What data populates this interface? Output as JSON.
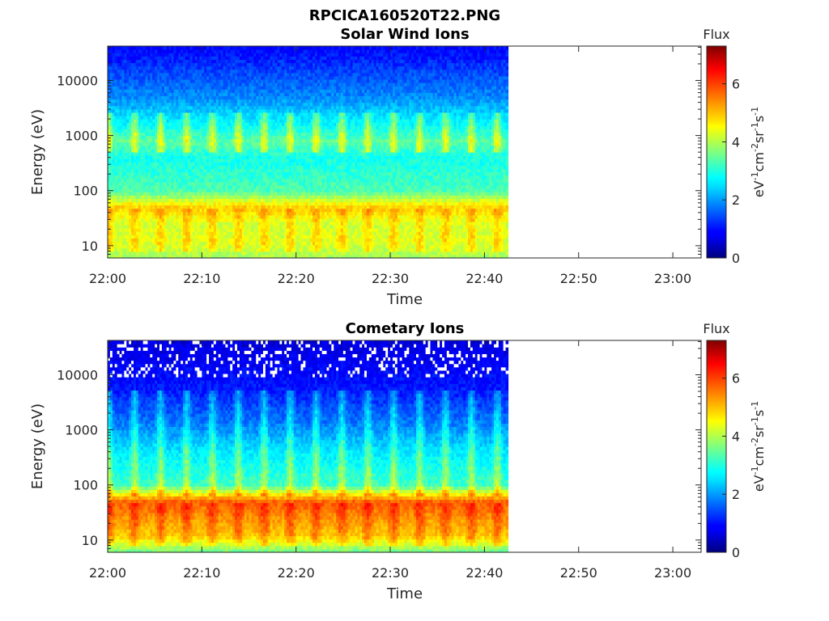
{
  "figure": {
    "title": "RPCICA160520T22.PNG"
  },
  "chart_data": [
    {
      "type": "heatmap",
      "title": "Solar Wind Ions",
      "xlabel": "Time",
      "ylabel": "Energy (eV)",
      "yscale": "log",
      "x_ticks": [
        "22:00",
        "22:10",
        "22:20",
        "22:30",
        "22:40",
        "22:50",
        "23:00"
      ],
      "xlim": [
        "22:00",
        "23:03"
      ],
      "data_end": "22:42.5",
      "y_ticks": [
        10,
        100,
        1000,
        10000
      ],
      "ylim": [
        6,
        42000
      ],
      "colorbar": {
        "title": "Flux",
        "label": "eV-1cm-2sr-1s-1",
        "ticks": [
          0,
          2,
          4,
          6
        ],
        "range": [
          0,
          7.3
        ],
        "colormap": "jet"
      },
      "spectrum": [
        {
          "energy": 6,
          "flux": 3.9
        },
        {
          "energy": 12,
          "flux": 4.3
        },
        {
          "energy": 25,
          "flux": 4.2
        },
        {
          "energy": 50,
          "flux": 4.9
        },
        {
          "energy": 100,
          "flux": 3.3
        },
        {
          "energy": 400,
          "flux": 2.9
        },
        {
          "energy": 800,
          "flux": 3.4
        },
        {
          "energy": 1500,
          "flux": 2.8
        },
        {
          "energy": 5000,
          "flux": 1.9
        },
        {
          "energy": 40000,
          "flux": 0.9
        }
      ],
      "periodic_feature": {
        "period_min": 2.75,
        "energy_min": 500,
        "energy_max": 2500,
        "flux_boost": 1.1
      },
      "grid": false
    },
    {
      "type": "heatmap",
      "title": "Cometary Ions",
      "xlabel": "Time",
      "ylabel": "Energy (eV)",
      "yscale": "log",
      "x_ticks": [
        "22:00",
        "22:10",
        "22:20",
        "22:30",
        "22:40",
        "22:50",
        "23:00"
      ],
      "xlim": [
        "22:00",
        "23:03"
      ],
      "data_end": "22:42.5",
      "y_ticks": [
        10,
        100,
        1000,
        10000
      ],
      "ylim": [
        6,
        42000
      ],
      "colorbar": {
        "title": "Flux",
        "label": "eV-1cm-2sr-1s-1",
        "ticks": [
          0,
          2,
          4,
          6
        ],
        "range": [
          0,
          7.3
        ],
        "colormap": "jet"
      },
      "spectrum": [
        {
          "energy": 6,
          "flux": 3.5
        },
        {
          "energy": 12,
          "flux": 4.9
        },
        {
          "energy": 25,
          "flux": 5.3
        },
        {
          "energy": 50,
          "flux": 5.8
        },
        {
          "energy": 100,
          "flux": 3.2
        },
        {
          "energy": 400,
          "flux": 2.6
        },
        {
          "energy": 1500,
          "flux": 1.7
        },
        {
          "energy": 5000,
          "flux": 1.1
        },
        {
          "energy": 40000,
          "flux": 0.6
        }
      ],
      "periodic_feature": {
        "period_min": 2.75,
        "energy_min": 60,
        "energy_max": 5000,
        "flux_boost": 0.9
      },
      "grid": false
    }
  ]
}
